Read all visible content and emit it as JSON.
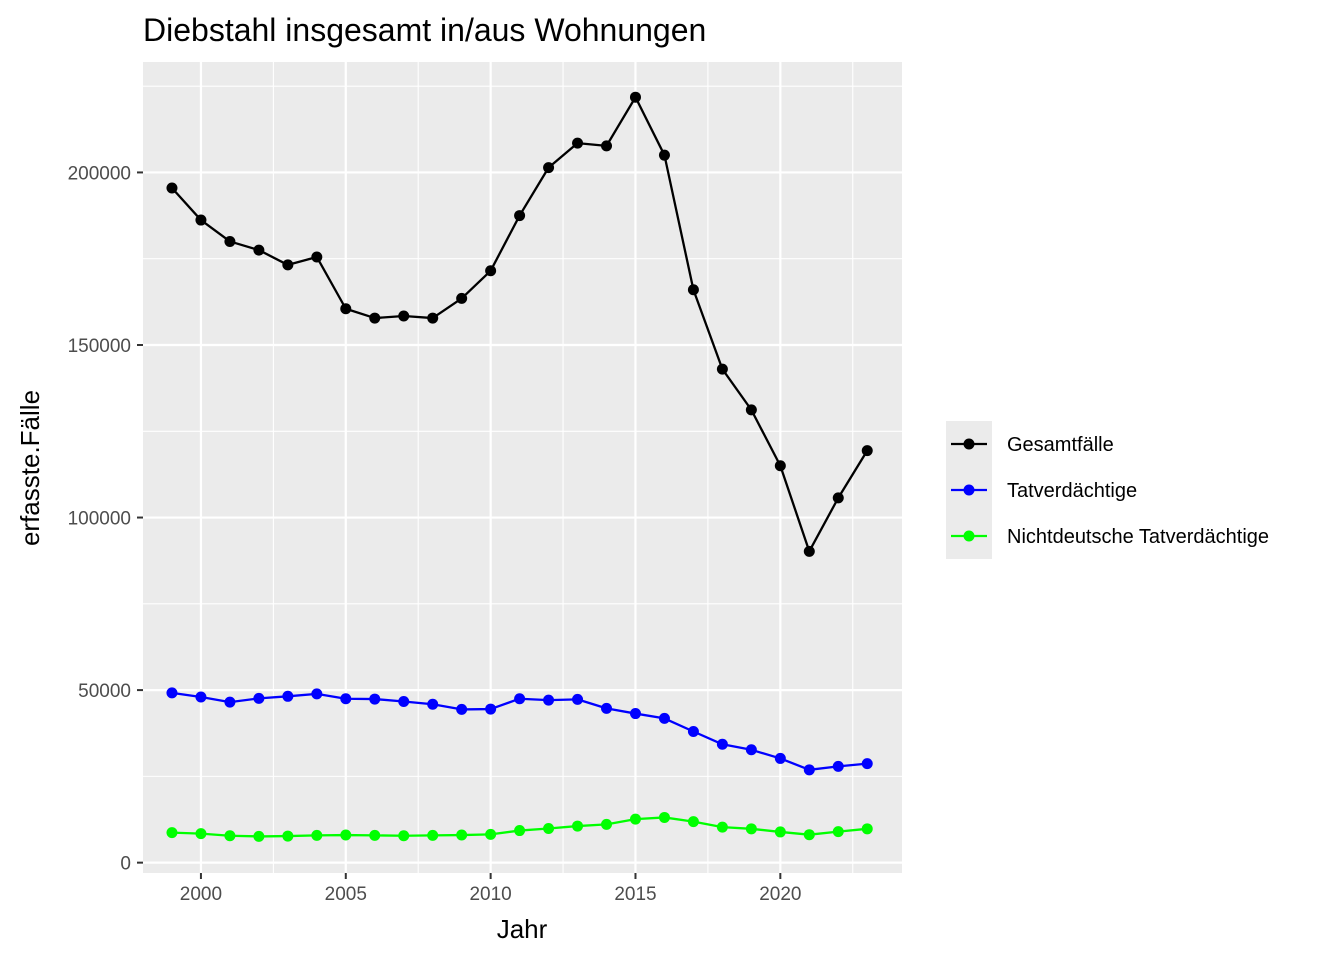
{
  "chart_data": {
    "type": "line",
    "title": "Diebstahl insgesamt in/aus Wohnungen",
    "xlabel": "Jahr",
    "ylabel": "erfasste.Fälle",
    "xlim": [
      1998,
      2024.2
    ],
    "ylim": [
      -3000,
      232000
    ],
    "x_ticks": [
      2000,
      2005,
      2010,
      2015,
      2020
    ],
    "y_ticks": [
      0,
      50000,
      100000,
      150000,
      200000
    ],
    "grid": true,
    "legend_position": "right",
    "x": [
      1999,
      2000,
      2001,
      2002,
      2003,
      2004,
      2005,
      2006,
      2007,
      2008,
      2009,
      2010,
      2011,
      2012,
      2013,
      2014,
      2015,
      2016,
      2017,
      2018,
      2019,
      2020,
      2021,
      2022,
      2023
    ],
    "series": [
      {
        "name": "Gesamtfälle",
        "color": "#000000",
        "values": [
          195500,
          186200,
          180000,
          177500,
          173200,
          175500,
          160500,
          157800,
          158400,
          157800,
          163500,
          171500,
          187500,
          201400,
          208500,
          207700,
          221800,
          205000,
          166000,
          143000,
          131200,
          115000,
          90200,
          105700,
          119400
        ]
      },
      {
        "name": "Tatverdächtige",
        "color": "#0000ff",
        "values": [
          49200,
          48000,
          46500,
          47600,
          48200,
          48900,
          47500,
          47400,
          46700,
          45900,
          44400,
          44500,
          47500,
          47100,
          47300,
          44700,
          43200,
          41800,
          38000,
          34300,
          32700,
          30200,
          26900,
          27900,
          28700
        ]
      },
      {
        "name": "Nichtdeutsche Tatverdächtige",
        "color": "#00ff00",
        "values": [
          8700,
          8400,
          7800,
          7600,
          7700,
          7900,
          8000,
          7900,
          7800,
          7900,
          8000,
          8200,
          9300,
          9900,
          10600,
          11100,
          12600,
          13100,
          11900,
          10300,
          9800,
          8900,
          8100,
          9000,
          9800
        ]
      }
    ]
  }
}
